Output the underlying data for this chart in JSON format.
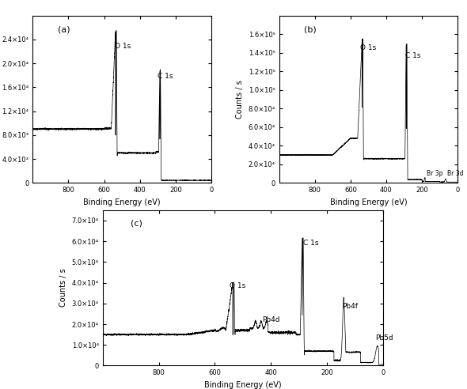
{
  "panels": [
    "(a)",
    "(b)",
    "(c)"
  ],
  "xlabel": "Binding Energy (eV)",
  "ylabel": "Counts / s",
  "background_color": "#ffffff",
  "panel_a": {
    "ylim": [
      0,
      28000.0
    ],
    "yticks": [
      0,
      4000,
      8000,
      12000,
      16000,
      20000,
      24000
    ],
    "ytick_labels": [
      "0",
      "4.0×10³",
      "8.0×10³",
      "1.2×10⁴",
      "1.6×10⁴",
      "2.0×10⁴",
      "2.4×10⁴"
    ]
  },
  "panel_b": {
    "ylim": [
      0,
      180000.0
    ],
    "yticks": [
      0,
      20000,
      40000,
      60000,
      80000,
      100000,
      120000,
      140000,
      160000
    ],
    "ytick_labels": [
      "0",
      "2.0×10⁴",
      "4.0×10⁴",
      "6.0×10⁴",
      "8.0×10⁴",
      "1.0×10⁵",
      "1.2×10⁵",
      "1.4×10⁵",
      "1.6×10⁵"
    ]
  },
  "panel_c": {
    "ylim": [
      0,
      75000.0
    ],
    "yticks": [
      0,
      10000,
      20000,
      30000,
      40000,
      50000,
      60000,
      70000
    ],
    "ytick_labels": [
      "0",
      "1.0×10⁴",
      "2.0×10⁴",
      "3.0×10⁴",
      "4.0×10⁴",
      "5.0×10⁴",
      "6.0×10⁴",
      "7.0×10⁴"
    ]
  }
}
